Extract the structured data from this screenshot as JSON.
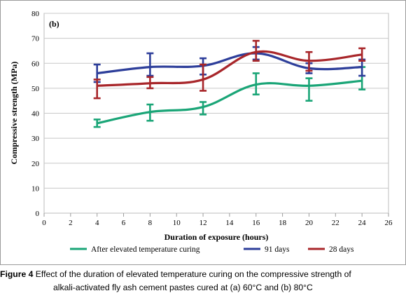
{
  "chart_data": {
    "type": "line",
    "panel_label": "(b)",
    "xlabel": "Duration of exposure (hours)",
    "ylabel": "Compressive strength (MPa)",
    "xlim": [
      0,
      26
    ],
    "ylim": [
      0,
      80
    ],
    "x_ticks": [
      "0",
      "2",
      "4",
      "6",
      "8",
      "10",
      "12",
      "14",
      "16",
      "18",
      "20",
      "22",
      "24",
      "26"
    ],
    "y_ticks": [
      "0",
      "10",
      "20",
      "30",
      "40",
      "50",
      "60",
      "70",
      "80"
    ],
    "grid": "horizontal",
    "legend_position": "bottom",
    "x": [
      4,
      8,
      12,
      16,
      20,
      24
    ],
    "series": [
      {
        "name": "After elevated temperature curing",
        "color": "#1aa577",
        "values": [
          36,
          40.5,
          42.5,
          51.5,
          51,
          53
        ],
        "error_low": [
          34.5,
          37,
          39.5,
          47.5,
          45,
          49.5
        ],
        "error_high": [
          37.5,
          43.5,
          44.5,
          56,
          54,
          58.5
        ]
      },
      {
        "name": "91 days",
        "color": "#2d3e9a",
        "values": [
          56,
          58.5,
          59,
          64,
          58,
          58.5
        ],
        "error_low": [
          52.5,
          55,
          55.5,
          61.5,
          56,
          55
        ],
        "error_high": [
          59.5,
          64,
          62,
          66.5,
          60,
          61.5
        ]
      },
      {
        "name": "28 days",
        "color": "#a8262a",
        "values": [
          51,
          52,
          53.5,
          64.5,
          61,
          63.5
        ],
        "error_low": [
          46,
          50,
          49,
          61,
          57,
          61
        ],
        "error_high": [
          53.5,
          54.5,
          59.5,
          69,
          64.5,
          66
        ]
      }
    ]
  },
  "caption": {
    "label": "Figure 4",
    "line1": "Effect of the duration of elevated temperature curing on the compressive strength of",
    "line2": "alkali-activated fly ash cement pastes cured at (a) 60°C and (b) 80°C"
  }
}
